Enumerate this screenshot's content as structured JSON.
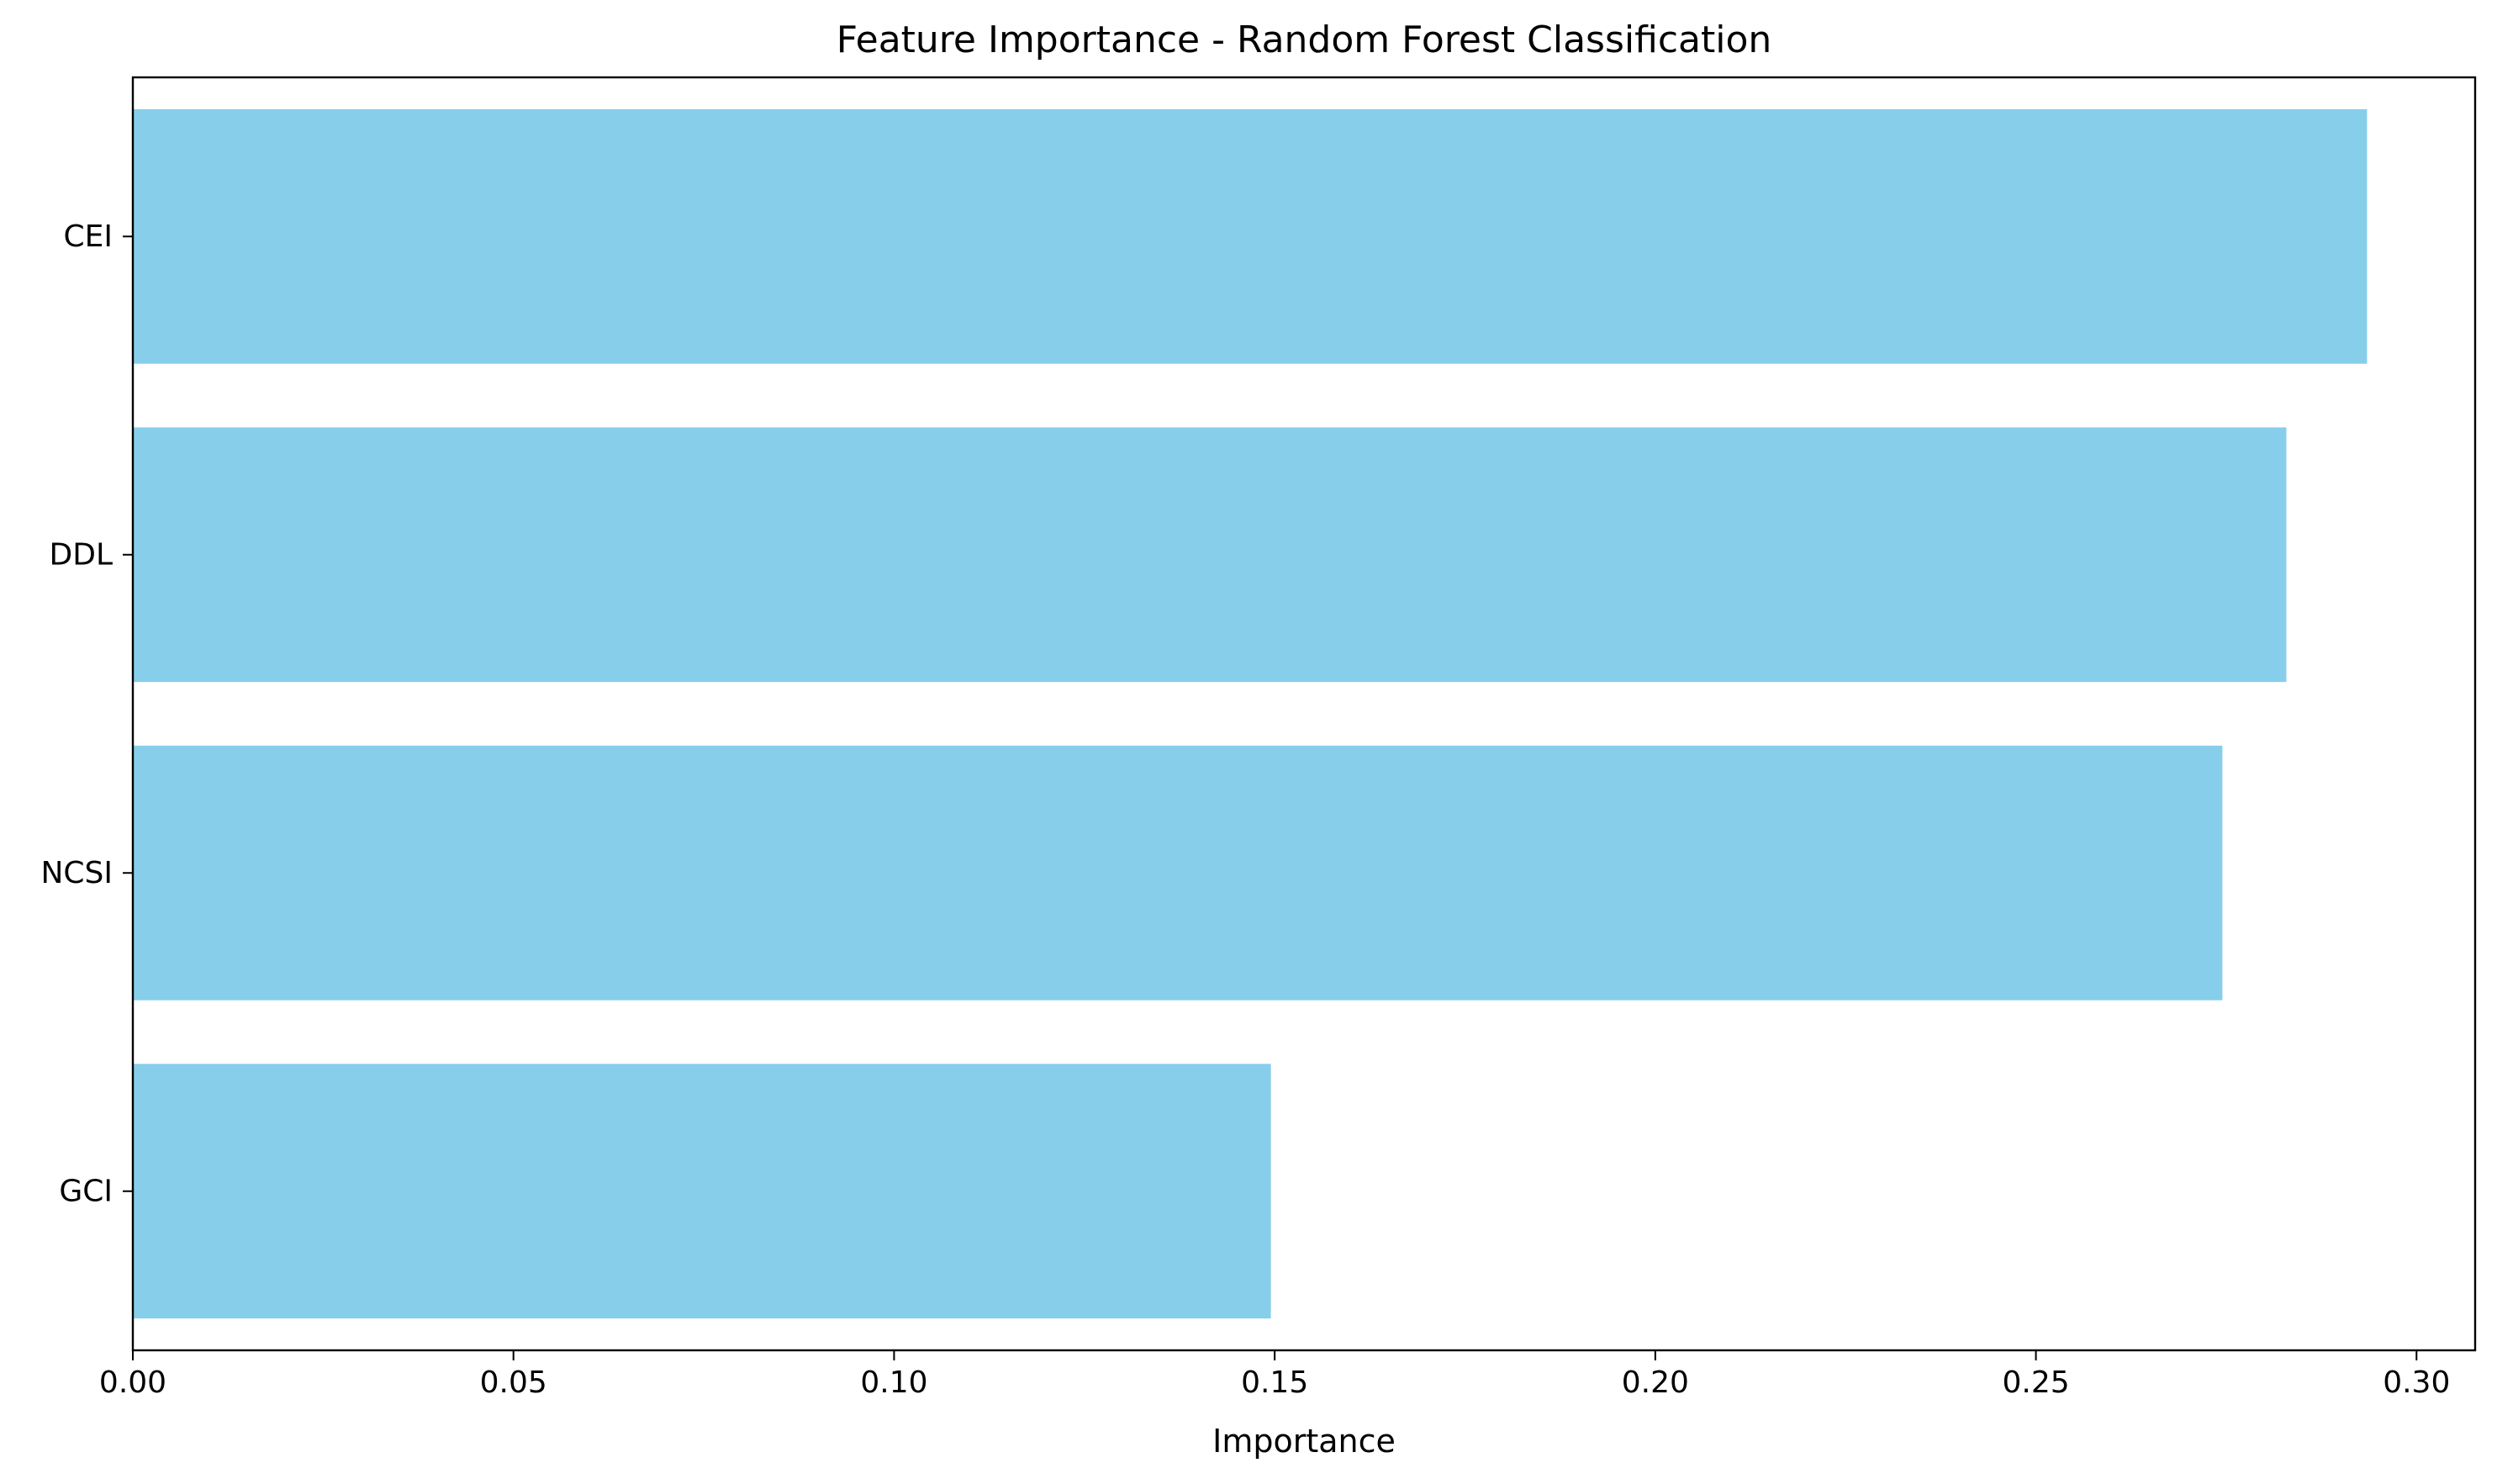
{
  "chart_data": {
    "type": "bar",
    "orientation": "horizontal",
    "title": "Feature Importance - Random Forest Classification",
    "xlabel": "Importance",
    "ylabel": "",
    "categories": [
      "CEI",
      "DDL",
      "NCSI",
      "GCI"
    ],
    "values": [
      0.2935,
      0.2829,
      0.2745,
      0.1495
    ],
    "xlim": [
      0,
      0.3077
    ],
    "xticks": [
      0.0,
      0.05,
      0.1,
      0.15,
      0.2,
      0.25,
      0.3
    ],
    "xtick_labels": [
      "0.00",
      "0.05",
      "0.10",
      "0.15",
      "0.20",
      "0.25",
      "0.30"
    ],
    "bar_color": "#87CEEB",
    "grid": false,
    "legend": false
  }
}
